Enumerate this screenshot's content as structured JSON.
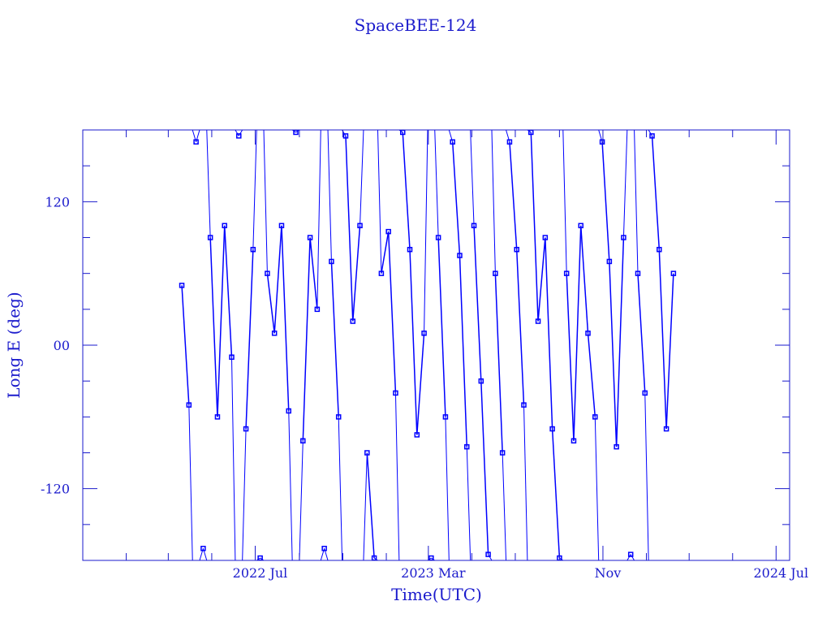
{
  "chart_data": {
    "type": "line",
    "title": "SpaceBEE-124",
    "xlabel": "Time(UTC)",
    "ylabel": "Long E (deg)",
    "xlim": [
      "2021-11-01",
      "2024-07-20"
    ],
    "ylim": [
      -180,
      180
    ],
    "x_ticks": [
      {
        "date": "2022-07-01",
        "label": "2022 Jul"
      },
      {
        "date": "2023-03-01",
        "label": "2023 Mar"
      },
      {
        "date": "2023-11-01",
        "label": "Nov"
      },
      {
        "date": "2024-07-01",
        "label": "2024 Jul"
      }
    ],
    "y_ticks": [
      {
        "value": 120,
        "label": "120"
      },
      {
        "value": 0,
        "label": "00"
      },
      {
        "value": -120,
        "label": "-120"
      }
    ],
    "grid": false,
    "marker": "square",
    "colors": {
      "series": "#0000ff",
      "axis": "#1a1acc"
    },
    "series": [
      {
        "x": [
          "2022-03-20",
          "2022-03-30",
          "2022-04-09",
          "2022-04-19",
          "2022-04-29",
          "2022-05-09",
          "2022-05-19",
          "2022-05-29",
          "2022-06-08",
          "2022-06-18",
          "2022-06-28",
          "2022-07-08",
          "2022-07-18",
          "2022-07-28",
          "2022-08-07",
          "2022-08-17",
          "2022-08-27",
          "2022-09-06",
          "2022-09-16",
          "2022-09-26",
          "2022-10-06",
          "2022-10-16",
          "2022-10-26",
          "2022-11-05",
          "2022-11-15",
          "2022-11-25",
          "2022-12-05",
          "2022-12-15",
          "2022-12-25",
          "2023-01-04",
          "2023-01-14",
          "2023-01-24",
          "2023-02-03",
          "2023-02-13",
          "2023-02-23",
          "2023-03-05",
          "2023-03-15",
          "2023-03-25",
          "2023-04-04",
          "2023-04-14",
          "2023-04-24",
          "2023-05-04",
          "2023-05-14",
          "2023-05-24",
          "2023-06-03",
          "2023-06-13",
          "2023-06-23",
          "2023-07-03",
          "2023-07-13",
          "2023-07-23",
          "2023-08-02",
          "2023-08-12",
          "2023-08-22",
          "2023-09-01",
          "2023-09-11",
          "2023-09-21",
          "2023-10-01",
          "2023-10-11",
          "2023-10-21",
          "2023-10-31",
          "2023-11-10",
          "2023-11-20",
          "2023-11-30",
          "2023-12-10",
          "2023-12-20",
          "2023-12-30",
          "2024-01-09",
          "2024-01-19",
          "2024-01-29",
          "2024-02-08"
        ],
        "y": [
          50,
          -50,
          170,
          -170,
          90,
          -60,
          100,
          -10,
          175,
          -70,
          80,
          -178,
          60,
          10,
          100,
          -55,
          178,
          -80,
          90,
          30,
          -170,
          70,
          -60,
          175,
          20,
          100,
          -90,
          -178,
          60,
          95,
          -40,
          178,
          80,
          -75,
          10,
          -178,
          90,
          -60,
          170,
          75,
          -85,
          100,
          -30,
          -175,
          60,
          -90,
          170,
          80,
          -50,
          178,
          20,
          90,
          -70,
          -178,
          60,
          -80,
          100,
          10,
          -60,
          170,
          70,
          -85,
          90,
          -175,
          60,
          -40,
          175,
          80,
          -70,
          60
        ]
      }
    ]
  }
}
